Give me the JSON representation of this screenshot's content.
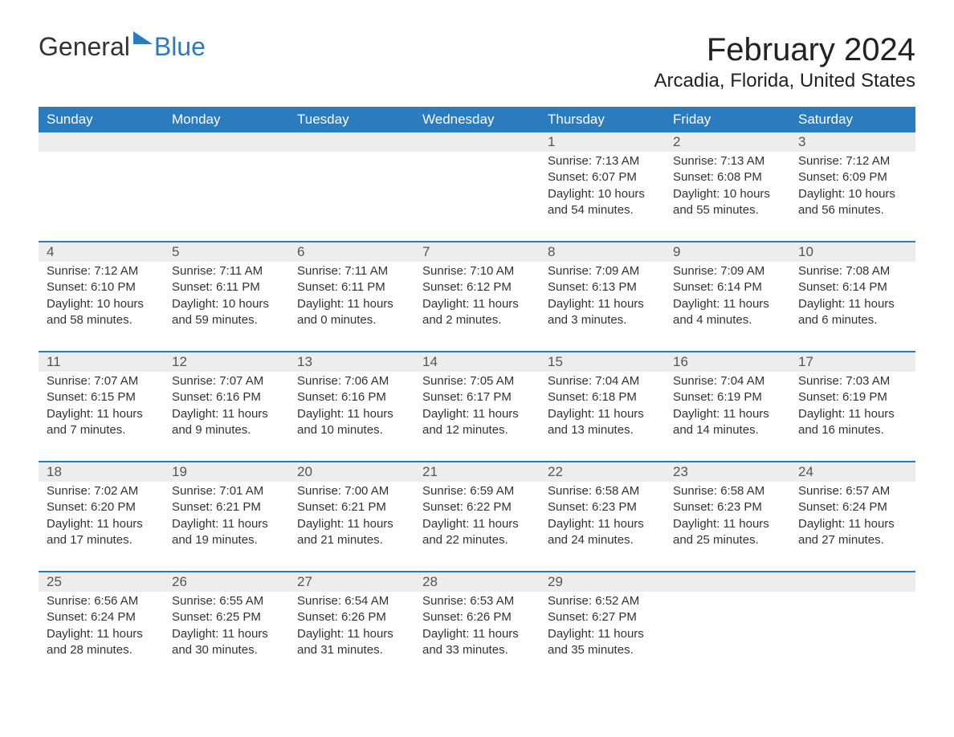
{
  "logo": {
    "text1": "General",
    "text2": "Blue",
    "text1_color": "#333333",
    "text2_color": "#2b7bbf",
    "icon_color": "#2b7bbf"
  },
  "title": {
    "month": "February 2024",
    "location": "Arcadia, Florida, United States",
    "month_fontsize": 40,
    "location_fontsize": 24,
    "color": "#222222"
  },
  "calendar": {
    "type": "table",
    "header_bg": "#2b7bbf",
    "header_fg": "#ffffff",
    "row_divider_color": "#2b7bbf",
    "daynum_bg": "#ededed",
    "text_color": "#333333",
    "body_fontsize": 15,
    "daynames": [
      "Sunday",
      "Monday",
      "Tuesday",
      "Wednesday",
      "Thursday",
      "Friday",
      "Saturday"
    ],
    "weeks": [
      {
        "cells": [
          {
            "day": "",
            "sunrise": "",
            "sunset": "",
            "daylight": ""
          },
          {
            "day": "",
            "sunrise": "",
            "sunset": "",
            "daylight": ""
          },
          {
            "day": "",
            "sunrise": "",
            "sunset": "",
            "daylight": ""
          },
          {
            "day": "",
            "sunrise": "",
            "sunset": "",
            "daylight": ""
          },
          {
            "day": "1",
            "sunrise": "Sunrise: 7:13 AM",
            "sunset": "Sunset: 6:07 PM",
            "daylight": "Daylight: 10 hours and 54 minutes."
          },
          {
            "day": "2",
            "sunrise": "Sunrise: 7:13 AM",
            "sunset": "Sunset: 6:08 PM",
            "daylight": "Daylight: 10 hours and 55 minutes."
          },
          {
            "day": "3",
            "sunrise": "Sunrise: 7:12 AM",
            "sunset": "Sunset: 6:09 PM",
            "daylight": "Daylight: 10 hours and 56 minutes."
          }
        ]
      },
      {
        "cells": [
          {
            "day": "4",
            "sunrise": "Sunrise: 7:12 AM",
            "sunset": "Sunset: 6:10 PM",
            "daylight": "Daylight: 10 hours and 58 minutes."
          },
          {
            "day": "5",
            "sunrise": "Sunrise: 7:11 AM",
            "sunset": "Sunset: 6:11 PM",
            "daylight": "Daylight: 10 hours and 59 minutes."
          },
          {
            "day": "6",
            "sunrise": "Sunrise: 7:11 AM",
            "sunset": "Sunset: 6:11 PM",
            "daylight": "Daylight: 11 hours and 0 minutes."
          },
          {
            "day": "7",
            "sunrise": "Sunrise: 7:10 AM",
            "sunset": "Sunset: 6:12 PM",
            "daylight": "Daylight: 11 hours and 2 minutes."
          },
          {
            "day": "8",
            "sunrise": "Sunrise: 7:09 AM",
            "sunset": "Sunset: 6:13 PM",
            "daylight": "Daylight: 11 hours and 3 minutes."
          },
          {
            "day": "9",
            "sunrise": "Sunrise: 7:09 AM",
            "sunset": "Sunset: 6:14 PM",
            "daylight": "Daylight: 11 hours and 4 minutes."
          },
          {
            "day": "10",
            "sunrise": "Sunrise: 7:08 AM",
            "sunset": "Sunset: 6:14 PM",
            "daylight": "Daylight: 11 hours and 6 minutes."
          }
        ]
      },
      {
        "cells": [
          {
            "day": "11",
            "sunrise": "Sunrise: 7:07 AM",
            "sunset": "Sunset: 6:15 PM",
            "daylight": "Daylight: 11 hours and 7 minutes."
          },
          {
            "day": "12",
            "sunrise": "Sunrise: 7:07 AM",
            "sunset": "Sunset: 6:16 PM",
            "daylight": "Daylight: 11 hours and 9 minutes."
          },
          {
            "day": "13",
            "sunrise": "Sunrise: 7:06 AM",
            "sunset": "Sunset: 6:16 PM",
            "daylight": "Daylight: 11 hours and 10 minutes."
          },
          {
            "day": "14",
            "sunrise": "Sunrise: 7:05 AM",
            "sunset": "Sunset: 6:17 PM",
            "daylight": "Daylight: 11 hours and 12 minutes."
          },
          {
            "day": "15",
            "sunrise": "Sunrise: 7:04 AM",
            "sunset": "Sunset: 6:18 PM",
            "daylight": "Daylight: 11 hours and 13 minutes."
          },
          {
            "day": "16",
            "sunrise": "Sunrise: 7:04 AM",
            "sunset": "Sunset: 6:19 PM",
            "daylight": "Daylight: 11 hours and 14 minutes."
          },
          {
            "day": "17",
            "sunrise": "Sunrise: 7:03 AM",
            "sunset": "Sunset: 6:19 PM",
            "daylight": "Daylight: 11 hours and 16 minutes."
          }
        ]
      },
      {
        "cells": [
          {
            "day": "18",
            "sunrise": "Sunrise: 7:02 AM",
            "sunset": "Sunset: 6:20 PM",
            "daylight": "Daylight: 11 hours and 17 minutes."
          },
          {
            "day": "19",
            "sunrise": "Sunrise: 7:01 AM",
            "sunset": "Sunset: 6:21 PM",
            "daylight": "Daylight: 11 hours and 19 minutes."
          },
          {
            "day": "20",
            "sunrise": "Sunrise: 7:00 AM",
            "sunset": "Sunset: 6:21 PM",
            "daylight": "Daylight: 11 hours and 21 minutes."
          },
          {
            "day": "21",
            "sunrise": "Sunrise: 6:59 AM",
            "sunset": "Sunset: 6:22 PM",
            "daylight": "Daylight: 11 hours and 22 minutes."
          },
          {
            "day": "22",
            "sunrise": "Sunrise: 6:58 AM",
            "sunset": "Sunset: 6:23 PM",
            "daylight": "Daylight: 11 hours and 24 minutes."
          },
          {
            "day": "23",
            "sunrise": "Sunrise: 6:58 AM",
            "sunset": "Sunset: 6:23 PM",
            "daylight": "Daylight: 11 hours and 25 minutes."
          },
          {
            "day": "24",
            "sunrise": "Sunrise: 6:57 AM",
            "sunset": "Sunset: 6:24 PM",
            "daylight": "Daylight: 11 hours and 27 minutes."
          }
        ]
      },
      {
        "cells": [
          {
            "day": "25",
            "sunrise": "Sunrise: 6:56 AM",
            "sunset": "Sunset: 6:24 PM",
            "daylight": "Daylight: 11 hours and 28 minutes."
          },
          {
            "day": "26",
            "sunrise": "Sunrise: 6:55 AM",
            "sunset": "Sunset: 6:25 PM",
            "daylight": "Daylight: 11 hours and 30 minutes."
          },
          {
            "day": "27",
            "sunrise": "Sunrise: 6:54 AM",
            "sunset": "Sunset: 6:26 PM",
            "daylight": "Daylight: 11 hours and 31 minutes."
          },
          {
            "day": "28",
            "sunrise": "Sunrise: 6:53 AM",
            "sunset": "Sunset: 6:26 PM",
            "daylight": "Daylight: 11 hours and 33 minutes."
          },
          {
            "day": "29",
            "sunrise": "Sunrise: 6:52 AM",
            "sunset": "Sunset: 6:27 PM",
            "daylight": "Daylight: 11 hours and 35 minutes."
          },
          {
            "day": "",
            "sunrise": "",
            "sunset": "",
            "daylight": ""
          },
          {
            "day": "",
            "sunrise": "",
            "sunset": "",
            "daylight": ""
          }
        ]
      }
    ]
  }
}
